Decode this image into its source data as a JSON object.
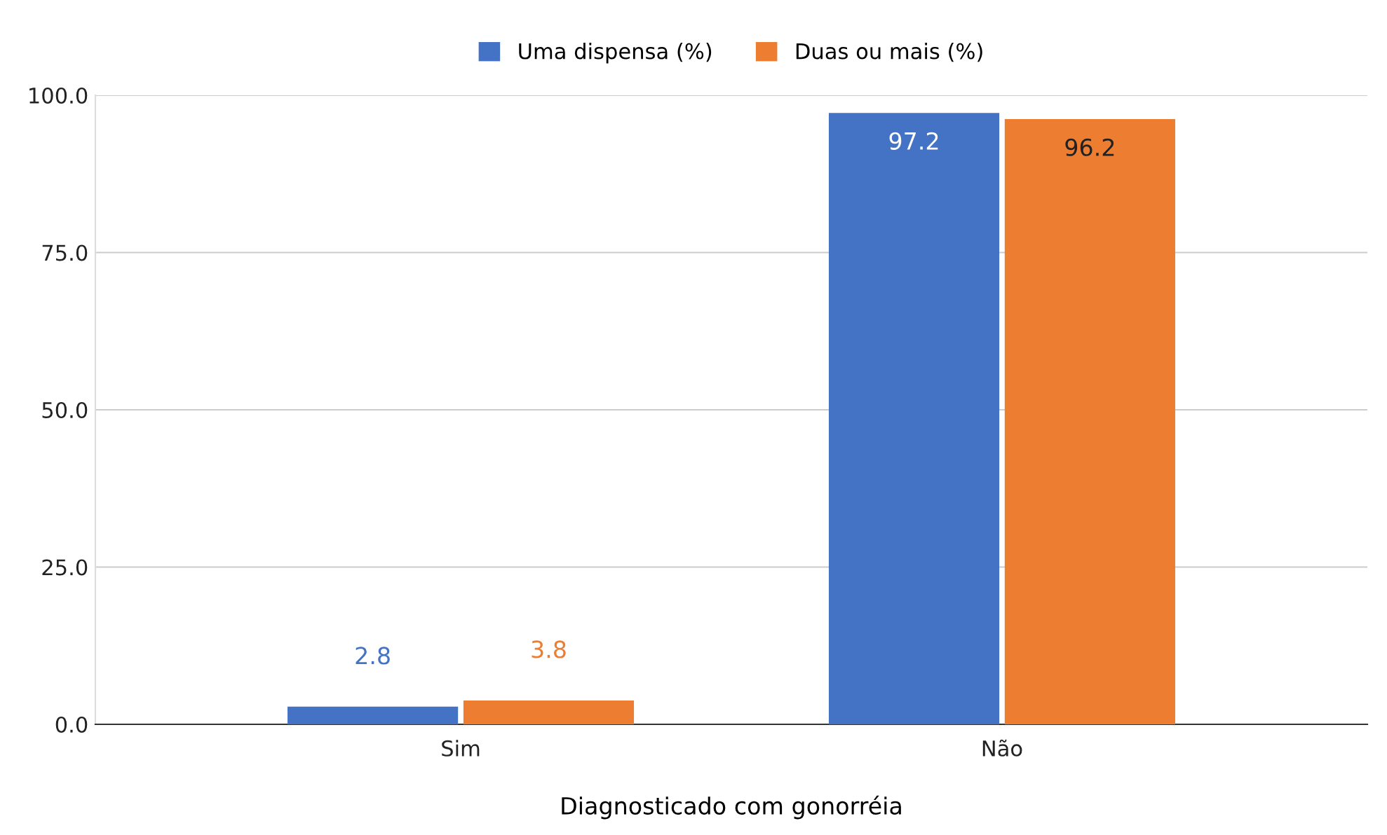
{
  "chart_data": {
    "type": "bar",
    "xlabel": "Diagnosticado com gonorréia",
    "categories": [
      "Sim",
      "Não"
    ],
    "series": [
      {
        "name": "Uma dispensa (%)",
        "color": "#4472c4",
        "values": [
          2.8,
          97.2
        ]
      },
      {
        "name": "Duas ou mais (%)",
        "color": "#ed7d31",
        "values": [
          3.8,
          96.2
        ]
      }
    ],
    "ylim": [
      0,
      100
    ],
    "yticks": [
      {
        "value": 0,
        "label": "0.0"
      },
      {
        "value": 25,
        "label": "25.0"
      },
      {
        "value": 50,
        "label": "50.0"
      },
      {
        "value": 75,
        "label": "75.0"
      },
      {
        "value": 100,
        "label": "100.0"
      }
    ],
    "grid": "y",
    "legend": "top",
    "data_labels": true
  }
}
